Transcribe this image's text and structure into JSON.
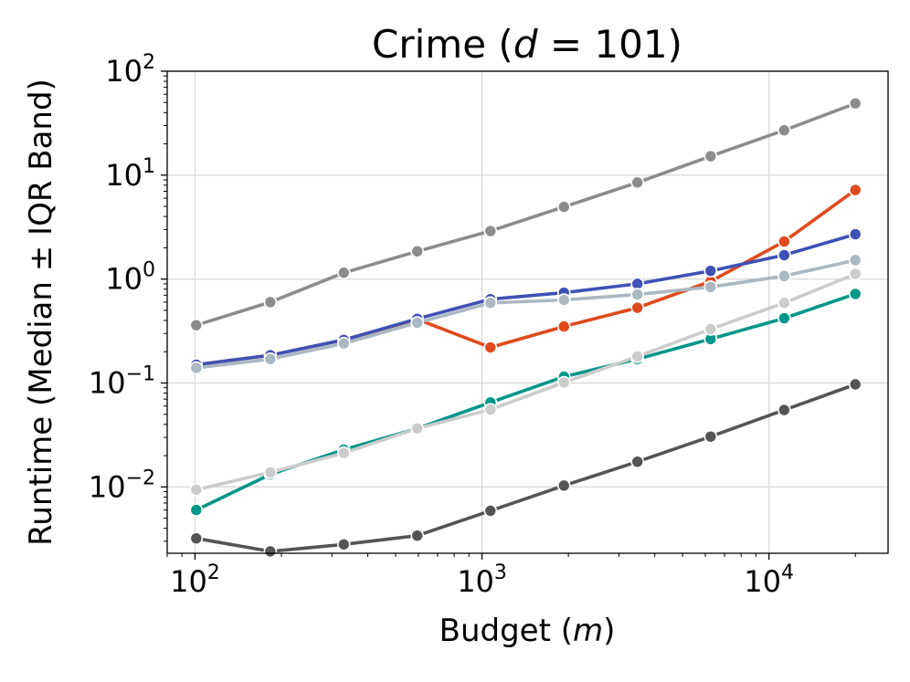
{
  "chart_data": {
    "type": "line",
    "title": {
      "prefix": "Crime (",
      "var": "d",
      "eq": " = 101",
      "suffix": ")"
    },
    "xlabel": {
      "prefix": "Budget (",
      "var": "m",
      "suffix": ")"
    },
    "ylabel": "Runtime (Median ± IQR Band)",
    "xscale": "log",
    "yscale": "log",
    "xlim": [
      80,
      26000
    ],
    "ylim": [
      0.0023,
      100
    ],
    "grid": true,
    "legend": "none",
    "x_ticks": [
      {
        "value": 100,
        "base": "10",
        "exp": "2"
      },
      {
        "value": 1000,
        "base": "10",
        "exp": "3"
      },
      {
        "value": 10000,
        "base": "10",
        "exp": "4"
      }
    ],
    "y_ticks": [
      {
        "value": 0.01,
        "base": "10",
        "exp": "−2"
      },
      {
        "value": 0.1,
        "base": "10",
        "exp": "−1"
      },
      {
        "value": 1,
        "base": "10",
        "exp": "0"
      },
      {
        "value": 10,
        "base": "10",
        "exp": "1"
      },
      {
        "value": 100,
        "base": "10",
        "exp": "2"
      }
    ],
    "x": [
      101,
      183,
      330,
      595,
      1070,
      1930,
      3480,
      6260,
      11300,
      20000
    ],
    "series": [
      {
        "color": "#8c8c8c",
        "values": [
          0.36,
          0.6,
          1.15,
          1.85,
          2.9,
          4.95,
          8.5,
          15.2,
          27,
          49
        ]
      },
      {
        "color": "#e04a1c",
        "values": [
          0.15,
          0.185,
          0.26,
          0.41,
          0.22,
          0.35,
          0.53,
          0.95,
          2.3,
          7.2
        ]
      },
      {
        "color": "#3f51b5",
        "values": [
          0.15,
          0.185,
          0.26,
          0.415,
          0.64,
          0.74,
          0.9,
          1.2,
          1.7,
          2.7
        ]
      },
      {
        "color": "#aab8c2",
        "values": [
          0.14,
          0.17,
          0.24,
          0.38,
          0.59,
          0.63,
          0.71,
          0.84,
          1.07,
          1.52
        ]
      },
      {
        "color": "#009688",
        "values": [
          0.006,
          0.0132,
          0.0228,
          0.0365,
          0.065,
          0.115,
          0.17,
          0.265,
          0.42,
          0.72
        ]
      },
      {
        "color": "#cccccc",
        "values": [
          0.0094,
          0.0138,
          0.0212,
          0.0365,
          0.0555,
          0.101,
          0.18,
          0.33,
          0.59,
          1.12
        ]
      },
      {
        "color": "#545454",
        "values": [
          0.0032,
          0.0024,
          0.0028,
          0.0034,
          0.0059,
          0.0103,
          0.0175,
          0.0305,
          0.055,
          0.097
        ]
      }
    ]
  }
}
